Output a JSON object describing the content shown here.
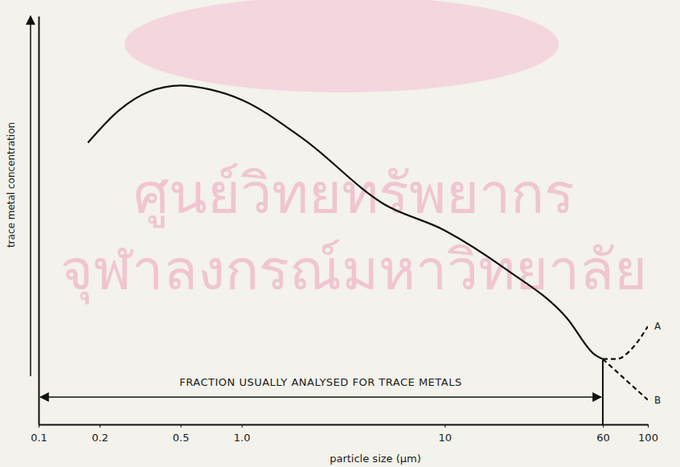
{
  "chart_data": {
    "type": "line",
    "x_label": "particle size  (µm)",
    "y_label": "trace metal concentration",
    "log": "x",
    "grid": false,
    "tick_labels": "x",
    "xlim": [
      0.1,
      100
    ],
    "xticks": [
      0.1,
      0.2,
      0.5,
      {
        "value": 1,
        "label": "1.0"
      },
      10,
      60,
      100
    ],
    "ylim": [
      0,
      100
    ],
    "yticks": [],
    "series": [
      {
        "color": "#111111",
        "line_style": "solid",
        "x": [
          0.175,
          0.25,
          0.35,
          0.5,
          0.7,
          1.0,
          2.0,
          5.0,
          10,
          20,
          40,
          55,
          60
        ],
        "values": [
          69,
          77,
          81.5,
          83,
          82,
          79.5,
          70,
          54,
          47.5,
          38,
          26,
          17,
          16
        ]
      },
      {
        "name": "A",
        "color": "#111111",
        "line_style": "dashed",
        "x": [
          60,
          70,
          85,
          100
        ],
        "values": [
          16,
          16,
          19,
          24
        ]
      },
      {
        "name": "B",
        "color": "#111111",
        "line_style": "dashed",
        "x": [
          60,
          100
        ],
        "values": [
          16,
          6
        ]
      }
    ],
    "annotations": [
      {
        "text": "FRACTION USUALLY ANALYSED FOR TRACE METALS",
        "x": [
          0.1,
          60
        ]
      }
    ],
    "watermark": [
      "ศูนย์วิทยทรัพยากร",
      "จุฬาลงกรณ์มหาวิทยาลัย"
    ]
  }
}
